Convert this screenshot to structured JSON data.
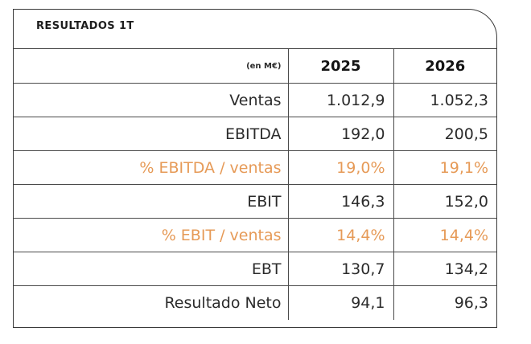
{
  "title": "RESULTADOS 1T",
  "unit_label": "(en M€)",
  "years": [
    "2025",
    "2026"
  ],
  "accent_color": "#e69a57",
  "rows": [
    {
      "label": "Ventas",
      "v2025": "1.012,9",
      "v2026": "1.052,3",
      "accent": false
    },
    {
      "label": "EBITDA",
      "v2025": "192,0",
      "v2026": "200,5",
      "accent": false
    },
    {
      "label": "% EBITDA / ventas",
      "v2025": "19,0%",
      "v2026": "19,1%",
      "accent": true
    },
    {
      "label": "EBIT",
      "v2025": "146,3",
      "v2026": "152,0",
      "accent": false
    },
    {
      "label": "% EBIT / ventas",
      "v2025": "14,4%",
      "v2026": "14,4%",
      "accent": true
    },
    {
      "label": "EBT",
      "v2025": "130,7",
      "v2026": "134,2",
      "accent": false
    },
    {
      "label": "Resultado Neto",
      "v2025": "94,1",
      "v2026": "96,3",
      "accent": false
    }
  ]
}
